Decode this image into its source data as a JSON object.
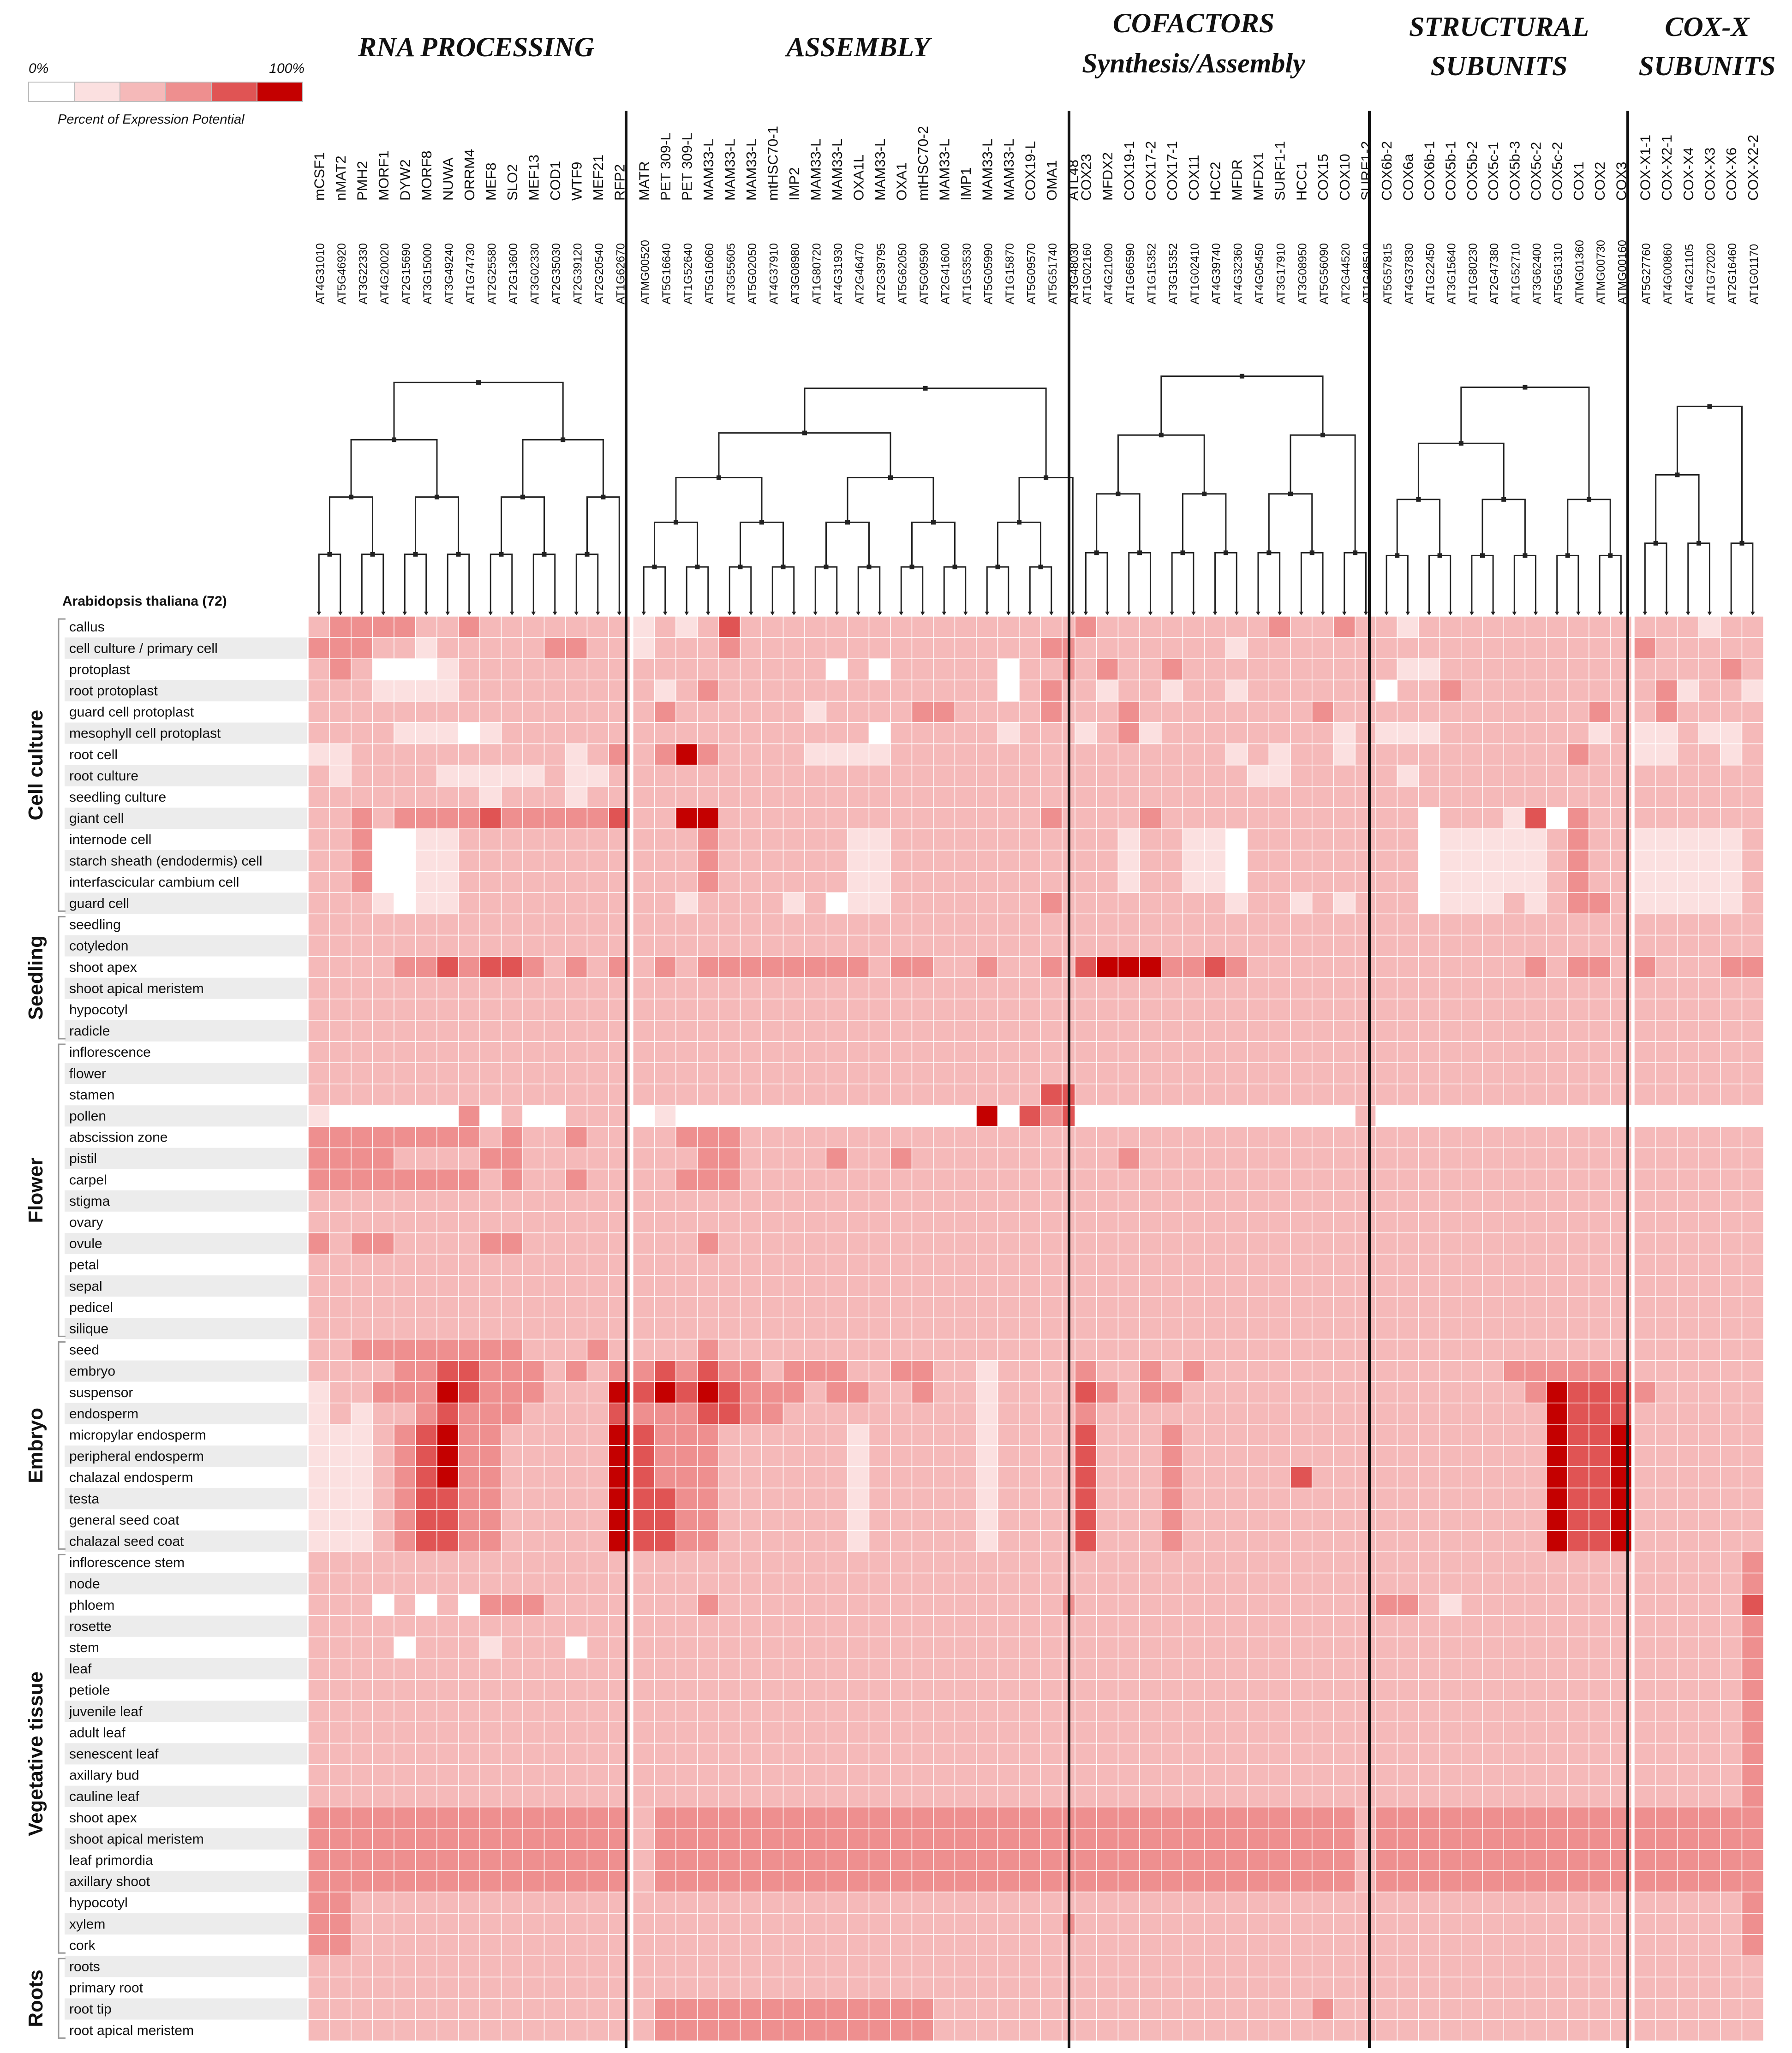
{
  "chart_data": {
    "type": "heatmap",
    "species_label": "Arabidopsis thaliana (72)",
    "legend": {
      "min_label": "0%",
      "max_label": "100%",
      "caption": "Percent of Expression Potential",
      "colors": [
        "#ffffff",
        "#fbe0e0",
        "#f5b9b9",
        "#ee8f8f",
        "#e05454",
        "#c40000"
      ]
    },
    "groups": [
      {
        "title": "RNA PROCESSING",
        "genes": [
          {
            "name": "mCSF1",
            "id": "AT4G31010"
          },
          {
            "name": "nMAT2",
            "id": "AT5G46920"
          },
          {
            "name": "PMH2",
            "id": "AT3G22330"
          },
          {
            "name": "MORF1",
            "id": "AT4G20020"
          },
          {
            "name": "DYW2",
            "id": "AT2G15690"
          },
          {
            "name": "MORF8",
            "id": "AT3G15000"
          },
          {
            "name": "NUWA",
            "id": "AT3G49240"
          },
          {
            "name": "ORRM4",
            "id": "AT1G74730"
          },
          {
            "name": "MEF8",
            "id": "AT2G25580"
          },
          {
            "name": "SLO2",
            "id": "AT2G13600"
          },
          {
            "name": "MEF13",
            "id": "AT3G02330"
          },
          {
            "name": "COD1",
            "id": "AT2G35030"
          },
          {
            "name": "WTF9",
            "id": "AT2G39120"
          },
          {
            "name": "MEF21",
            "id": "AT2G20540"
          },
          {
            "name": "RFP2",
            "id": "AT1G62670"
          }
        ]
      },
      {
        "title": "ASSEMBLY",
        "genes": [
          {
            "name": "MATR",
            "id": "ATMG00520"
          },
          {
            "name": "PET 309-L",
            "id": "AT5G16640"
          },
          {
            "name": "PET 309-L",
            "id": "AT1G52640"
          },
          {
            "name": "MAM33-L",
            "id": "AT5G16060"
          },
          {
            "name": "MAM33-L",
            "id": "AT3G55605"
          },
          {
            "name": "MAM33-L",
            "id": "AT5G02050"
          },
          {
            "name": "mtHSC70-1",
            "id": "AT4G37910"
          },
          {
            "name": "IMP2",
            "id": "AT3G08980"
          },
          {
            "name": "MAM33-L",
            "id": "AT1G80720"
          },
          {
            "name": "MAM33-L",
            "id": "AT4G31930"
          },
          {
            "name": "OXA1L",
            "id": "AT2G46470"
          },
          {
            "name": "MAM33-L",
            "id": "AT2G39795"
          },
          {
            "name": "OXA1",
            "id": "AT5G62050"
          },
          {
            "name": "mtHSC70-2",
            "id": "AT5G09590"
          },
          {
            "name": "MAM33-L",
            "id": "AT2G41600"
          },
          {
            "name": "IMP1",
            "id": "AT1G53530"
          },
          {
            "name": "MAM33-L",
            "id": "AT5G05990"
          },
          {
            "name": "MAM33-L",
            "id": "AT1G15870"
          },
          {
            "name": "COX19-L",
            "id": "AT5G09570"
          },
          {
            "name": "OMA1",
            "id": "AT5G51740"
          },
          {
            "name": "ATL48",
            "id": "AT3G48030"
          }
        ]
      },
      {
        "title": "COFACTORS",
        "subtitle": "Synthesis/Assembly",
        "genes": [
          {
            "name": "COX23",
            "id": "AT1G02160"
          },
          {
            "name": "MFDX2",
            "id": "AT4G21090"
          },
          {
            "name": "COX19-1",
            "id": "AT1G66590"
          },
          {
            "name": "COX17-2",
            "id": "AT1G15352"
          },
          {
            "name": "COX17-1",
            "id": "AT3G15352"
          },
          {
            "name": "COX11",
            "id": "AT1G02410"
          },
          {
            "name": "HCC2",
            "id": "AT4G39740"
          },
          {
            "name": "MFDR",
            "id": "AT4G32360"
          },
          {
            "name": "MFDX1",
            "id": "AT4G05450"
          },
          {
            "name": "SURF1-1",
            "id": "AT3G17910"
          },
          {
            "name": "HCC1",
            "id": "AT3G08950"
          },
          {
            "name": "COX15",
            "id": "AT5G56090"
          },
          {
            "name": "COX10",
            "id": "AT2G44520"
          },
          {
            "name": "SURF1-2",
            "id": "AT1G48510"
          }
        ]
      },
      {
        "title": "STRUCTURAL",
        "subtitle": "SUBUNITS",
        "genes": [
          {
            "name": "COX6b-2",
            "id": "AT5G57815"
          },
          {
            "name": "COX6a",
            "id": "AT4G37830"
          },
          {
            "name": "COX6b-1",
            "id": "AT1G22450"
          },
          {
            "name": "COX5b-1",
            "id": "AT3G15640"
          },
          {
            "name": "COX5b-2",
            "id": "AT1G80230"
          },
          {
            "name": "COX5c-1",
            "id": "AT2G47380"
          },
          {
            "name": "COX5b-3",
            "id": "AT1G52710"
          },
          {
            "name": "COX5c-2",
            "id": "AT3G62400"
          },
          {
            "name": "COX5c-2",
            "id": "AT5G61310"
          },
          {
            "name": "COX1",
            "id": "ATMG01360"
          },
          {
            "name": "COX2",
            "id": "ATMG00730"
          },
          {
            "name": "COX3",
            "id": "ATMG00160"
          }
        ]
      },
      {
        "title": "COX-X",
        "subtitle": "SUBUNITS",
        "genes": [
          {
            "name": "COX-X1-1",
            "id": "AT5G27760"
          },
          {
            "name": "COX-X2-1",
            "id": "AT4G00860"
          },
          {
            "name": "COX-X4",
            "id": "AT4G21105"
          },
          {
            "name": "COX-X3",
            "id": "AT1G72020"
          },
          {
            "name": "COX-X6",
            "id": "AT2G16460"
          },
          {
            "name": "COX-X2-2",
            "id": "AT1G01170"
          }
        ]
      }
    ],
    "categories": [
      {
        "name": "Cell culture",
        "rows": [
          "callus",
          "cell culture / primary cell",
          "protoplast",
          "root protoplast",
          "guard cell protoplast",
          "mesophyll cell protoplast",
          "root cell",
          "root culture",
          "seedling culture",
          "giant cell",
          "internode cell",
          "starch sheath (endodermis) cell",
          "interfascicular cambium cell",
          "guard cell"
        ]
      },
      {
        "name": "Seedling",
        "rows": [
          "seedling",
          "cotyledon",
          "shoot apex",
          "shoot apical meristem",
          "hypocotyl",
          "radicle"
        ]
      },
      {
        "name": "Flower",
        "rows": [
          "inflorescence",
          "flower",
          "stamen",
          "pollen",
          "abscission zone",
          "pistil",
          "carpel",
          "stigma",
          "ovary",
          "ovule",
          "petal",
          "sepal",
          "pedicel",
          "silique"
        ]
      },
      {
        "name": "Embryo",
        "rows": [
          "seed",
          "embryo",
          "suspensor",
          "endosperm",
          "micropylar endosperm",
          "peripheral endosperm",
          "chalazal endosperm",
          "testa",
          "general seed coat",
          "chalazal seed coat"
        ]
      },
      {
        "name": "Vegetative tissue",
        "rows": [
          "inflorescence stem",
          "node",
          "phloem",
          "rosette",
          "stem",
          "leaf",
          "petiole",
          "juvenile leaf",
          "adult leaf",
          "senescent leaf",
          "axillary bud",
          "cauline leaf",
          "shoot apex",
          "shoot apical meristem",
          "leaf primordia",
          "axillary shoot",
          "hypocotyl",
          "xylem",
          "cork"
        ]
      },
      {
        "name": "Roots",
        "rows": [
          "roots",
          "primary root",
          "root tip",
          "root apical meristem"
        ]
      }
    ],
    "value_scale": [
      0,
      5
    ],
    "value_unit": "legend color level (0 = 0% ... 5 = 100% of expression potential)",
    "row_levels": [
      "233332232222222/121242222222222222222/3222222223223/21222222222222/222122/",
      "333221222223322/122232222222222222233/22222221222222/222222222222/322222/",
      "232000122222222/222222222020222220223/2322322222222/211222222222/222232/",
      "222111122222222/212322222222222220232/21221221222222/022322222222/231221/",
      "222222222222222/232222221222233222232/2232222222232/222222222232/232222/",
      "222211101222222/222222222220222221222/1231222222221/111222222212/112112/",
      "112222222222123/235322221111222222222/2222222121221/222222222322/112212/",
      "212222111112112/222222222222222222222/2222222211222/212222222222/222222/",
      "222222221222122/222222222222222222222/2222222222222/222222222222/222222/",
      "223233334333334/225522222222222222232/2223222222222/220222140322/222222/",
      "223001122222222/222322222211222222222/2212211022222/220111112322/111112/",
      "223001122222222/222322222211222222222/2212211022222/220111112322/111112/",
      "223001122222222/222322222211222222222/2212211022222/220111112322/111112/",
      "222101122222222/221222212011222222232/2222222122121/220111212332/111112/",
      "222222222222222/222222222222222222222/2222222222222/222222222222/222222/",
      "222222222222222/222222222222222222222/2222222222222/222222222222/222222/",
      "222233434432323/232333333332332232232/4555334322222/222222232332/322233/",
      "222222222222222/222222222222222222222/2222222222222/222222222222/222222/",
      "222222222222222/222222222222222222222/2222222222222/222222222222/222222/",
      "222222222222222/222222222222222222222/2222222222222/222222222222/222222/",
      "222222222222222/222222222222222222222/2222222222222/222222222222/222222/",
      "222222222222222/222222222222222222222/2222222222222/222222222222/222222/",
      "222222222222222/222222222222222222244/2222222222222/222222222222/222222/",
      "100000030200222/010000000000000050434/0000000000000/000000000000/000000/",
      "333333332322322/223332222222222222222/2222222222222/222222222222/222222/",
      "333322223322222/222332222322322222222/2232222222222/222222222222/222222/",
      "333333332322322/223332222222222222222/2222222222222/222222222222/222222/",
      "222222222222222/222222222222222222222/2222222222222/222222222222/222222/",
      "222222222222222/222222222222222222222/2222222222222/222222222222/222222/",
      "323322223322222/222322222222222222222/2222222222222/222222222222/222222/",
      "222222222222222/222222222222222222222/2222222222222/222222222222/222222/",
      "222222222222222/222222222222222222222/2222222222222/222222222222/222222/",
      "222222222222222/222222222222222222222/2222222222222/222222222222/222222/",
      "222222222222222/222222222222222222222/2222222222222/222222222222/222222/",
      "223333333322232/222322222222222222222/2222222222222/222222222222/222222/",
      "222233443332323/343433233322332212222/3223232222222/222222333333/222222/",
      "122333543332225/454543332332232212222/4323322222222/222222235444/322222/",
      "121223433322224/333443322222222212222/3222222222222/222222225444/222222/",
      "111234533222225/433322222212222212222/4222322222222/222222225445/222222/",
      "111234533222225/433322222212222212222/4222322222222/222222225445/222222/",
      "111234533222225/433322222212222212222/4222322222422/222222225445/222222/",
      "111234433222225/443322222212222212222/4222322222222/222222225445/222222/",
      "111234433222225/443322222212222212222/4222322222222/222222225445/222222/",
      "111234433222225/443322222212222212222/4222322222222/222222225445/222222/",
      "222222222222222/222222222222222222222/2222222222222/222222222222/222223/",
      "222222222222222/222222222222222222222/2222222222222/222222222222/222223/",
      "222020203332222/222322222222222222223/2222222222222/332122222222/222224/",
      "222222222222222/222222222222222222222/2222222222222/222222222222/222223/",
      "222202221222022/222222222222222222222/2222222222222/222222222222/222223/",
      "222222222222222/222222222222222222222/2222222222222/222222222222/222223/",
      "222222222222222/222222222222222222222/2222222222222/222222222222/222223/",
      "222222222222222/222222222222222222222/2222222222222/222222222222/222223/",
      "222222222222222/222222222222222222222/2222222222222/222222222222/222223/",
      "222222222222222/222222222222222222222/2222222222222/222222222222/222223/",
      "222222222222222/222222222222222222222/2222222222222/222222222222/222223/",
      "222222222222222/222222222222222222222/2222222222222/222222222222/222223/",
      "333333333333333/233333333333333333333/3333333333333/333333333333/333333/",
      "333333333333333/233333333333333333333/3333333333333/333333333333/333333/",
      "333333333333333/233333333333333333333/3333333333333/333333333333/333333/",
      "333333333333333/233333333333333333333/3333333333333/333333333333/333333/",
      "332222222222222/222222222222222222222/2222222222222/222222222222/222223/",
      "332222222222222/222222222222222222223/2222222222222/222222222222/222223/",
      "332222222222222/222222222222222222222/2222222222222/222222222222/222223/",
      "222222222222222/222222222222222222222/2222222222222/222222222222/222222/",
      "222222222222222/222222222222222222222/2222222222222/222222222222/222222/",
      "222222222222222/233333333333332222222/2222222222232/222222222222/222222/",
      "222222222222222/233333333333332222222/2222222222222/222222222222/222222/"
    ]
  }
}
